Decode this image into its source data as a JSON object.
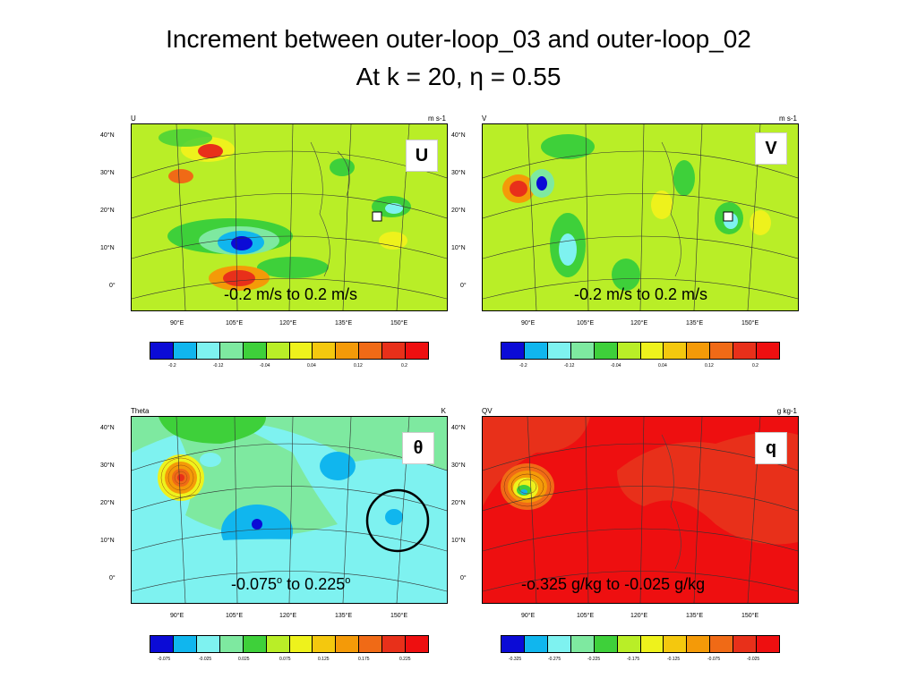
{
  "title_line1": "Increment between outer-loop_03 and outer-loop_02",
  "title_line2": "At k = 20, η = 0.55",
  "lat_labels": [
    "40°N",
    "30°N",
    "20°N",
    "10°N",
    "0°"
  ],
  "lon_labels": [
    "90°E",
    "105°E",
    "120°E",
    "135°E",
    "150°E"
  ],
  "palette": [
    "#0b0bd6",
    "#10b6ee",
    "#7ef2f0",
    "#7ee9a0",
    "#3ed03a",
    "#b9ee27",
    "#eef21c",
    "#f4c80e",
    "#f49a08",
    "#f06a16",
    "#e8301a",
    "#ee0f10"
  ],
  "panels": {
    "u": {
      "var_label": "U",
      "units": "m s-1",
      "badge": "U",
      "range": "-0.2 m/s to 0.2 m/s",
      "colorbar_labels": [
        "-0.2",
        "-0.12",
        "-0.04",
        "0.04",
        "0.12",
        "0.2"
      ]
    },
    "v": {
      "var_label": "V",
      "units": "m s-1",
      "badge": "V",
      "range": "-0.2 m/s to 0.2 m/s",
      "colorbar_labels": [
        "-0.2",
        "-0.12",
        "-0.04",
        "0.04",
        "0.12",
        "0.2"
      ]
    },
    "theta": {
      "var_label": "Theta",
      "units": "K",
      "badge": "θ",
      "range_value": "-0.075",
      "range_sup": "o",
      "range_mid": " to 0.225",
      "range_sup2": "o",
      "colorbar_labels": [
        "-0.075",
        "-0.025",
        "0.025",
        "0.075",
        "0.125",
        "0.175",
        "0.225"
      ]
    },
    "qv": {
      "var_label": "QV",
      "units": "g kg-1",
      "badge": "q",
      "range": "-o.325 g/kg to -0.025 g/kg",
      "colorbar_labels": [
        "-0.325",
        "-0.275",
        "-0.225",
        "-0.175",
        "-0.125",
        "-0.075",
        "-0.025"
      ]
    }
  }
}
